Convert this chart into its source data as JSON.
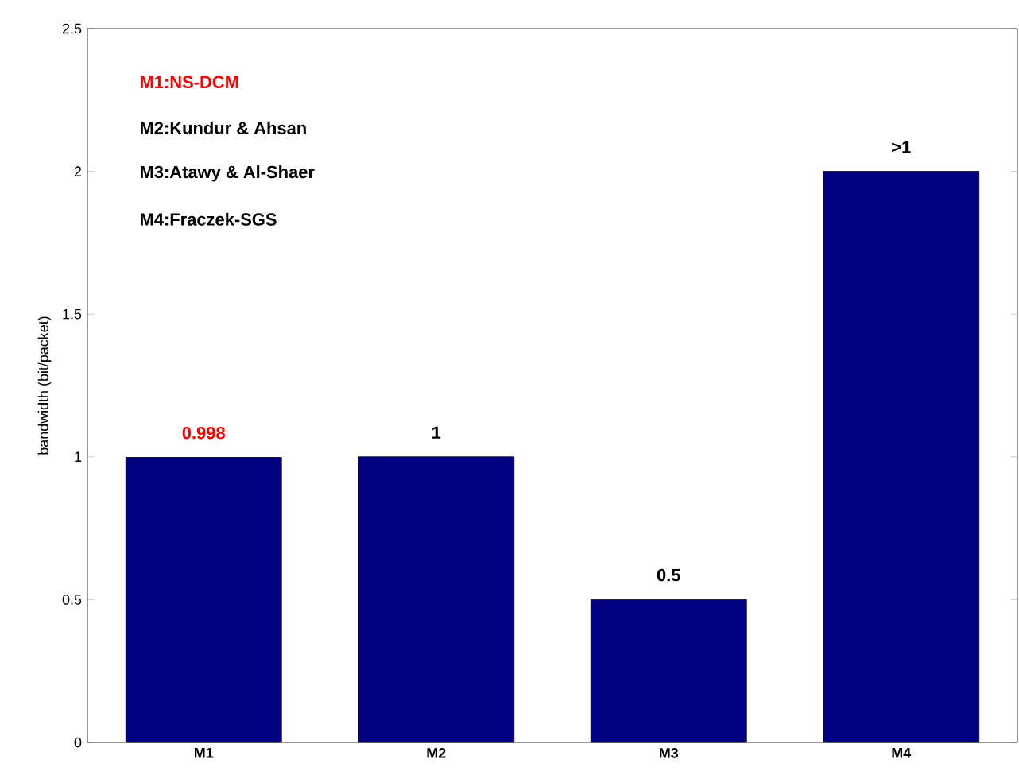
{
  "chart_data": {
    "type": "bar",
    "ylabel": "bandwidth (bit/packet)",
    "categories": [
      "M1",
      "M2",
      "M3",
      "M4"
    ],
    "values": [
      0.998,
      1,
      0.5,
      2
    ],
    "value_labels": [
      "0.998",
      "1",
      "0.5",
      ">1"
    ],
    "color": "#000080",
    "ylim": [
      0,
      2.5
    ],
    "yticks": [
      0,
      0.5,
      1,
      1.5,
      2,
      2.5
    ],
    "annotations": [
      "M1:NS-DCM",
      "M2:Kundur & Ahsan",
      "M3:Atawy & Al-Shaer",
      "M4:Fraczek-SGS"
    ]
  }
}
